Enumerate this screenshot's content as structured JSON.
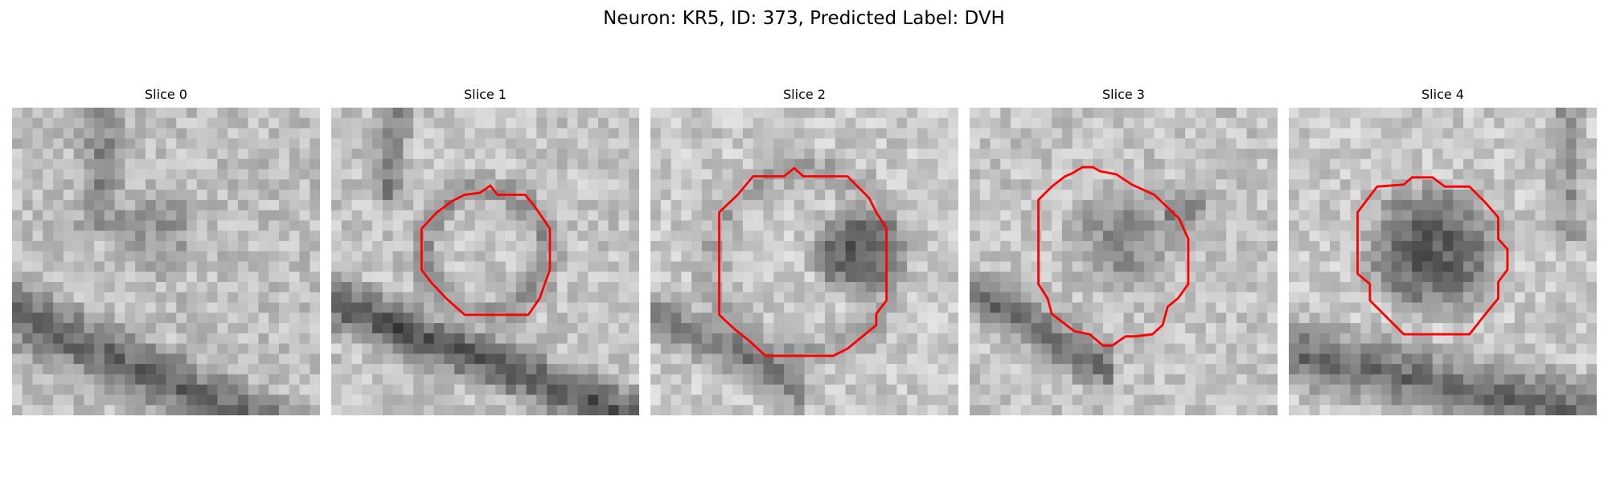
{
  "figure": {
    "title": "Neuron: KR5, ID: 373, Predicted Label: DVH"
  },
  "colors": {
    "outline": "#ff0000",
    "background": "#ffffff"
  },
  "slices": [
    {
      "title": "Slice 0",
      "has_outline": false
    },
    {
      "title": "Slice 1",
      "has_outline": true
    },
    {
      "title": "Slice 2",
      "has_outline": true
    },
    {
      "title": "Slice 3",
      "has_outline": true
    },
    {
      "title": "Slice 4",
      "has_outline": true
    }
  ]
}
